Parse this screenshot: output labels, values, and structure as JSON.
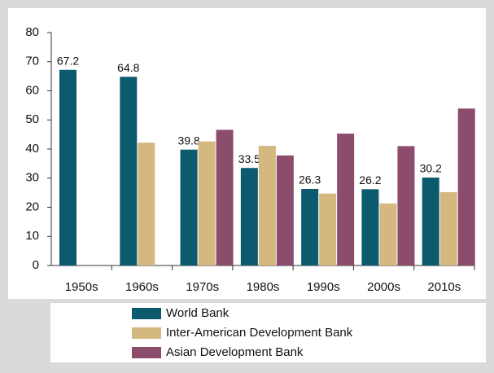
{
  "chart_data": {
    "type": "bar",
    "categories": [
      "1950s",
      "1960s",
      "1970s",
      "1980s",
      "1990s",
      "2000s",
      "2010s"
    ],
    "series": [
      {
        "name": "World Bank",
        "color": "#0b5a6e",
        "labels": true,
        "values": [
          67.2,
          64.8,
          39.8,
          33.5,
          26.3,
          26.2,
          30.2
        ]
      },
      {
        "name": "Inter-American Development Bank",
        "color": "#d4b87f",
        "values": [
          null,
          42.2,
          42.6,
          41.1,
          24.7,
          21.3,
          25.2
        ]
      },
      {
        "name": "Asian Development Bank",
        "color": "#8b4d6b",
        "values": [
          null,
          null,
          46.6,
          37.8,
          45.3,
          41.0,
          53.9
        ]
      }
    ],
    "ylim": [
      0,
      80
    ],
    "yticks": [
      0,
      10,
      20,
      30,
      40,
      50,
      60,
      70,
      80
    ],
    "grid": false,
    "legend": "bottom"
  }
}
